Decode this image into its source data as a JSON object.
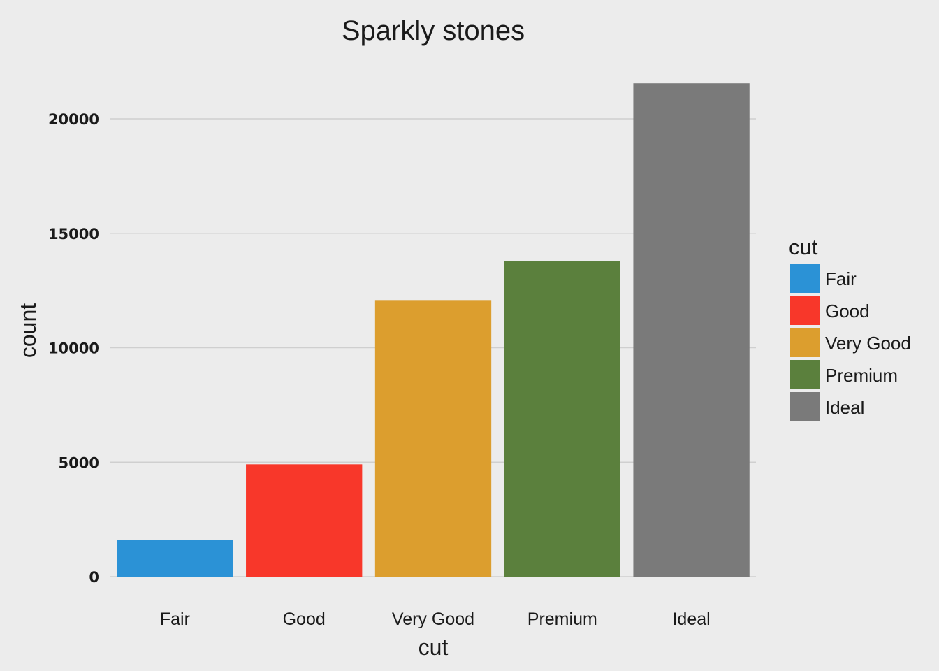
{
  "chart_data": {
    "type": "bar",
    "title": "Sparkly stones",
    "xlabel": "cut",
    "ylabel": "count",
    "categories": [
      "Fair",
      "Good",
      "Very Good",
      "Premium",
      "Ideal"
    ],
    "values": [
      1610,
      4906,
      12082,
      13791,
      21551
    ],
    "colors": [
      "#2b92d6",
      "#f8372a",
      "#dc9e2e",
      "#5b803d",
      "#7a7a7a"
    ],
    "ylim": [
      0,
      22000
    ],
    "yticks": [
      0,
      5000,
      10000,
      15000,
      20000
    ],
    "grid": true,
    "legend": {
      "title": "cut",
      "position": "right",
      "entries": [
        "Fair",
        "Good",
        "Very Good",
        "Premium",
        "Ideal"
      ]
    }
  }
}
